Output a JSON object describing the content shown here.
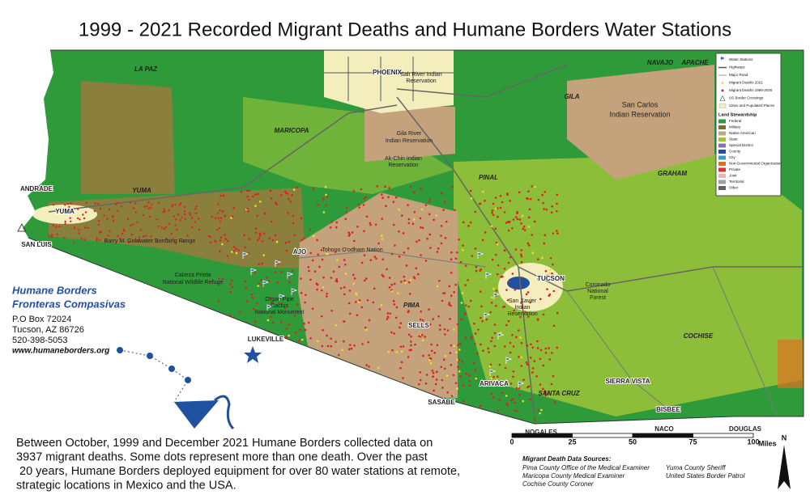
{
  "title": "1999 - 2021 Recorded Migrant Deaths and Humane Borders Water Stations",
  "place_labels": [
    "LA PAZ",
    "PHOENIX",
    "Salt River Indian",
    "Reservation",
    "NAVAJO",
    "APACHE",
    "GILA",
    "San Carlos",
    "Indian Reservation",
    "MARICOPA",
    "Gila River",
    "Indian Reservation",
    "Ak-Chin Indian",
    "Reservation",
    "PINAL",
    "GRAHAM",
    "YUMA",
    "ANDRADE",
    "YUMA",
    "SAN LUIS",
    "Barry M. Goldwater Bombing Range",
    "AJO",
    "Tohono O'odham Nation",
    "Cabeza Prieta",
    "National Wildlife Refuge",
    "Organ Pipe",
    "Cactus",
    "National Monument",
    "PIMA",
    "SELLS",
    "TUCSON",
    "San Xavier",
    "Indian",
    "Reservation",
    "Coronado",
    "National",
    "Forest",
    "LUKEVILLE",
    "COCHISE",
    "SIERRA VISTA",
    "SANTA CRUZ",
    "ARIVACA",
    "SASABE",
    "NOGALES",
    "NACO",
    "BISBEE",
    "DOUGLAS"
  ],
  "legend": {
    "items": [
      "Water Stations",
      "Highways",
      "Major Road",
      "Migrant Deaths 2021",
      "Migrant Deaths 1999-2020",
      "US Border Crossings",
      "Cities and Populated Places"
    ],
    "heading": "Land Stewardship",
    "stewardship": [
      {
        "name": "Federal",
        "color": "#2e9a3a"
      },
      {
        "name": "Military",
        "color": "#7a6d2c"
      },
      {
        "name": "Native American",
        "color": "#c4a27c"
      },
      {
        "name": "State",
        "color": "#9cc43a"
      },
      {
        "name": "Special District",
        "color": "#8a6fb0"
      },
      {
        "name": "County",
        "color": "#2050a0"
      },
      {
        "name": "City",
        "color": "#30a0c0"
      },
      {
        "name": "Non-Governmental Organization",
        "color": "#e07020"
      },
      {
        "name": "Private",
        "color": "#e03030"
      },
      {
        "name": "Joint",
        "color": "#f0b0b0"
      },
      {
        "name": "Territorial",
        "color": "#a0a0a0"
      },
      {
        "name": "Other",
        "color": "#606060"
      }
    ]
  },
  "scale": {
    "ticks": [
      0,
      25,
      50,
      75,
      100
    ],
    "unit": "Miles"
  },
  "north": "N",
  "organization": {
    "name": "Humane Borders",
    "name2": "Fronteras Compasivas",
    "address": [
      "P.O Box 72024",
      "Tucson, AZ 86726",
      "520-398-5053"
    ],
    "website": "www.humaneborders.org"
  },
  "description": [
    "Between October, 1999 and December 2021 Humane Borders collected data on",
    "3937 migrant deaths. Some dots represent more than one death. Over the past",
    " 20 years, Humane Borders deployed equipment for over 80 water stations at remote,",
    "strategic locations in Mexico and the USA."
  ],
  "sources": {
    "heading": "Migrant Death Data Sources:",
    "items": [
      "Pima County Office of the Medical Examiner",
      "Maricopa County Medical Examiner",
      "Cochise County Coroner",
      "Yuma County Sheriff",
      "United States Border Patrol"
    ]
  }
}
